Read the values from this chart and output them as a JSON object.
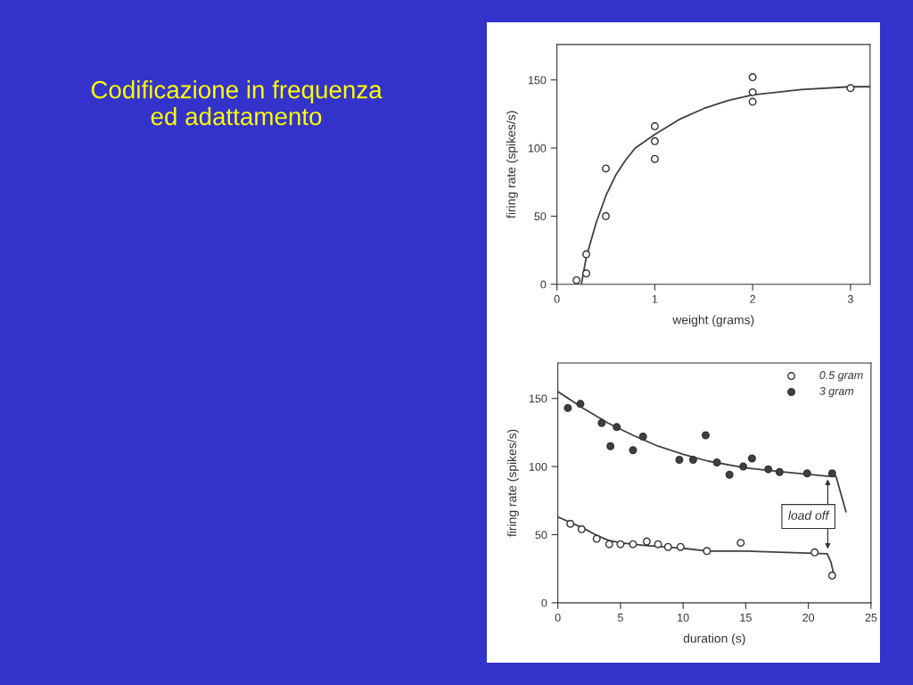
{
  "chart_data": [
    {
      "type": "scatter",
      "title": "Codificazione in frequenza ed adattamento",
      "xlabel": "weight (grams)",
      "ylabel": "firing rate (spikes/s)",
      "xlim": [
        0,
        3.2
      ],
      "ylim": [
        0,
        176
      ],
      "xticks": [
        0,
        1,
        2,
        3
      ],
      "yticks": [
        0,
        50,
        100,
        150
      ],
      "grid": false,
      "legend": false,
      "marker": "circle",
      "series": [
        {
          "color": "#ffffff",
          "x": [
            0.2,
            0.3,
            0.3,
            0.5,
            0.5,
            1,
            1,
            1,
            2,
            2,
            2,
            3
          ],
          "values": [
            3,
            22,
            8,
            85,
            50,
            116,
            105,
            92,
            152,
            141,
            134,
            144
          ]
        },
        {
          "type": "line",
          "marker": "none",
          "color": "#404040",
          "x": [
            0.25,
            0.3,
            0.4,
            0.5,
            0.6,
            0.7,
            0.8,
            1,
            1.25,
            1.5,
            1.75,
            2,
            2.5,
            3,
            3.2
          ],
          "values": [
            0,
            20,
            45,
            65,
            80,
            91,
            100,
            110,
            121,
            129,
            135,
            139,
            143,
            145,
            145
          ]
        }
      ]
    },
    {
      "type": "scatter",
      "xlabel": "duration (s)",
      "ylabel": "firing rate (spikes/s)",
      "xlim": [
        0,
        25
      ],
      "ylim": [
        0,
        176
      ],
      "xticks": [
        0,
        5,
        10,
        15,
        20,
        25
      ],
      "yticks": [
        0,
        50,
        100,
        150
      ],
      "grid": false,
      "legend": "top right",
      "marker": "circle",
      "annotations": [
        "load off"
      ],
      "series": [
        {
          "name": "0.5 gram",
          "color": "#ffffff",
          "x": [
            1.0,
            1.9,
            3.1,
            4.1,
            5.0,
            6.0,
            7.1,
            8.0,
            8.8,
            9.8,
            11.9,
            14.6,
            20.5,
            21.9
          ],
          "values": [
            58,
            54,
            47,
            43,
            43,
            43,
            45,
            43,
            41,
            41,
            38,
            44,
            37,
            20
          ]
        },
        {
          "name": "3 gram",
          "color": "#404040",
          "x": [
            0.8,
            1.8,
            3.5,
            4.7,
            4.2,
            6.8,
            6.0,
            9.7,
            10.8,
            11.8,
            12.7,
            13.7,
            14.8,
            15.5,
            16.8,
            17.7,
            19.9,
            21.9
          ],
          "values": [
            143,
            146,
            132,
            129,
            115,
            122,
            112,
            105,
            105,
            123,
            103,
            94,
            100,
            106,
            98,
            96,
            95,
            95
          ]
        },
        {
          "type": "line",
          "marker": "none",
          "color": "#404040",
          "x": [
            0,
            2,
            4,
            6,
            8,
            10,
            12,
            15,
            18,
            21.5,
            22.2,
            23
          ],
          "values": [
            155,
            143,
            132,
            123,
            115,
            109,
            104,
            99,
            96,
            93,
            93,
            67
          ]
        },
        {
          "type": "line",
          "marker": "none",
          "color": "#404040",
          "x": [
            0,
            1,
            2,
            3,
            4,
            5,
            7,
            10,
            12,
            15,
            21.5,
            21.8,
            22
          ],
          "values": [
            63,
            59,
            55,
            50,
            46,
            44,
            42,
            40,
            38,
            38,
            36,
            30,
            22
          ]
        }
      ]
    }
  ]
}
